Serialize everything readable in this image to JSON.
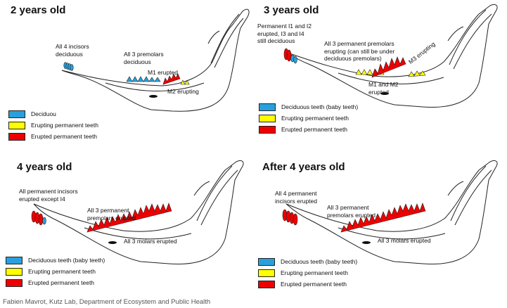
{
  "colors": {
    "deciduous": "#29a0dd",
    "erupting": "#ffff00",
    "erupted": "#ee0000",
    "outline": "#222222"
  },
  "panels": [
    {
      "title": "2 years old",
      "labels": [
        "All 4 incisors deciduous",
        "All 3 premolars deciduous",
        "M1 erupted",
        "M2 erupting"
      ],
      "legend": [
        "Deciduou",
        "Erupting permanent teeth",
        "Erupted permanent teeth"
      ]
    },
    {
      "title": "3 years old",
      "labels": [
        "Permanent I1 and I2 erupted, I3 and I4 still deciduous",
        "All 3 permanent premolars erupting (can still be under deciduous premolars)",
        "M3 erupting",
        "M1 and M2 erupted"
      ],
      "legend": [
        "Deciduous teeth (baby teeth)",
        "Erupting permanent teeth",
        "Erupted permanent teeth"
      ]
    },
    {
      "title": "4 years old",
      "labels": [
        "All permanent incisors erupted except I4",
        "All 3 permanent premolars erupted",
        "All 3 molars erupted"
      ],
      "legend": [
        "Deciduous teeth (baby teeth)",
        "Erupting permanent teeth",
        "Erupted permanent teeth"
      ]
    },
    {
      "title": "After 4 years old",
      "labels": [
        "All 4 permanent incisors erupted",
        "All 3 permanent premolars erupted",
        "All 3 molars erupted"
      ],
      "legend": [
        "Deciduous teeth (baby teeth)",
        "Erupting permanent teeth",
        "Erupted permanent teeth"
      ]
    }
  ],
  "credit": "Fabien Mavrot,  Kutz Lab, Department of Ecosystem and Public Health"
}
